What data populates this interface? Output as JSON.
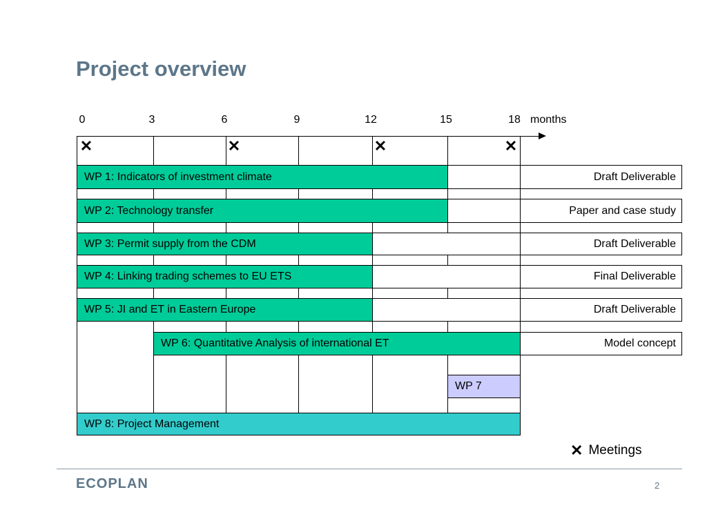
{
  "slide": {
    "title": "Project overview",
    "footer_logo": "ECOPLAN",
    "page_number": "2"
  },
  "timeline": {
    "ticks": [
      "0",
      "3",
      "6",
      "9",
      "12",
      "15",
      "18"
    ],
    "unit": "months",
    "meetings": [
      0,
      6,
      12,
      18
    ]
  },
  "legend": {
    "label": "Meetings",
    "icon": "x-mark-icon"
  },
  "workpackages": [
    {
      "label": "WP 1: Indicators of investment climate",
      "start": 0,
      "end": 15,
      "color": "#00cc99",
      "deliverable": "Draft Deliverable",
      "deliverable_month": 21
    },
    {
      "label": "WP 2: Technology transfer",
      "start": 0,
      "end": 15,
      "color": "#00cc99",
      "deliverable": "Paper and case study",
      "deliverable_month": 21
    },
    {
      "label": "WP 3: Permit supply from the CDM",
      "start": 0,
      "end": 12,
      "color": "#00cc99",
      "deliverable": "Draft Deliverable",
      "deliverable_month": 21
    },
    {
      "label": "WP 4: Linking trading schemes to EU ETS",
      "start": 0,
      "end": 12,
      "color": "#00cc99",
      "deliverable": "Final Deliverable",
      "deliverable_month": 21
    },
    {
      "label": "WP 5: JI and ET in Eastern Europe",
      "start": 0,
      "end": 12,
      "color": "#00cc99",
      "deliverable": "Draft Deliverable",
      "deliverable_month": 21
    },
    {
      "label": "WP 6: Quantitative Analysis of international ET",
      "start": 3,
      "end": 18,
      "color": "#00cc99",
      "deliverable": "Model concept",
      "deliverable_month": 18
    },
    {
      "label": "WP 7",
      "start": 15,
      "end": 18,
      "color": "#ccccff",
      "deliverable": "",
      "deliverable_month": null
    },
    {
      "label": "WP 8: Project Management",
      "start": 0,
      "end": 18,
      "color": "#33cccc",
      "deliverable": "",
      "deliverable_month": null
    }
  ]
}
